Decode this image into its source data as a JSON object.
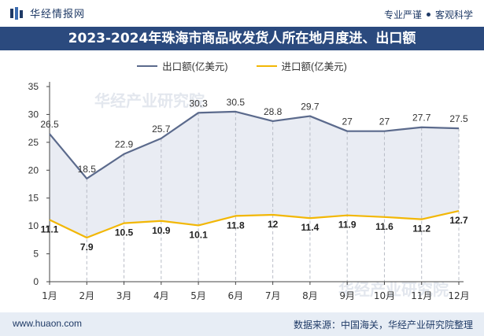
{
  "header": {
    "brand": "华经情报网",
    "slogan_left": "专业严谨",
    "slogan_right": "客观科学"
  },
  "title": "2023-2024年珠海市商品收发货人所在地月度进、出口额",
  "footer": {
    "url": "www.huaon.com",
    "source": "数据来源：中国海关，华经产业研究院整理"
  },
  "watermark": "华经产业研究院",
  "colors": {
    "export": "#5b6a8c",
    "import": "#f2b705",
    "title_bg": "#2b4a7e",
    "area": "#e9ecf3"
  },
  "chart_data": {
    "type": "line",
    "categories": [
      "1月",
      "2月",
      "3月",
      "4月",
      "5月",
      "6月",
      "7月",
      "8月",
      "9月",
      "10月",
      "11月",
      "12月"
    ],
    "series": [
      {
        "name": "出口额(亿美元)",
        "values": [
          26.5,
          18.5,
          22.9,
          25.7,
          30.3,
          30.5,
          28.8,
          29.7,
          27,
          27,
          27.7,
          27.5
        ],
        "labels": [
          "26.5",
          "18.5",
          "22.9",
          "25.7",
          "30.3",
          "30.5",
          "28.8",
          "29.7",
          "27",
          "27",
          "27.7",
          "27.5"
        ]
      },
      {
        "name": "进口额(亿美元)",
        "values": [
          11.1,
          7.9,
          10.5,
          10.9,
          10.1,
          11.8,
          12,
          11.4,
          11.9,
          11.6,
          11.2,
          12.7
        ],
        "labels": [
          "11.1",
          "7.9",
          "10.5",
          "10.9",
          "10.1",
          "11.8",
          "12",
          "11.4",
          "11.9",
          "11.6",
          "11.2",
          "12.7"
        ]
      }
    ],
    "ylim": [
      0,
      35
    ],
    "yticks": [
      "0",
      "5",
      "10",
      "15",
      "20",
      "25",
      "30",
      "35"
    ],
    "legend_position": "top-center",
    "grid": false,
    "drop_lines": true
  }
}
